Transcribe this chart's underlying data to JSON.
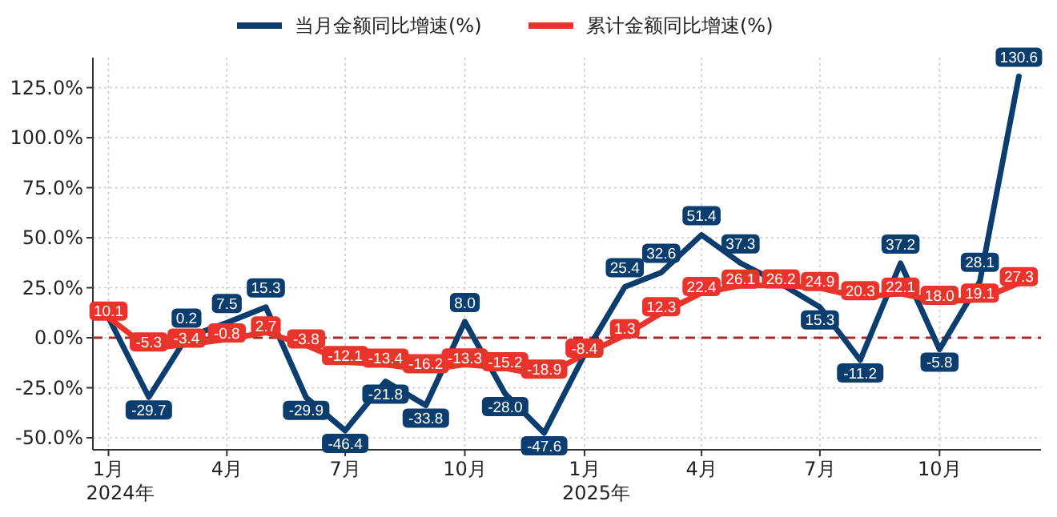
{
  "chart_data": {
    "type": "line",
    "x": [
      "2024-01",
      "2024-02",
      "2024-03",
      "2024-04",
      "2024-05",
      "2024-06",
      "2024-07",
      "2024-08",
      "2024-09",
      "2024-10",
      "2024-11",
      "2024-12",
      "2025-01",
      "2025-02",
      "2025-03",
      "2025-04",
      "2025-05",
      "2025-06",
      "2025-07",
      "2025-08",
      "2025-09",
      "2025-10",
      "2025-11",
      "2025-12"
    ],
    "series": [
      {
        "name": "当月金额同比增速(%)",
        "color": "#0b3d6e",
        "values": [
          10.1,
          -29.7,
          0.2,
          7.5,
          15.3,
          -29.9,
          -46.4,
          -21.8,
          -33.8,
          8.0,
          -28.0,
          -47.6,
          -8.4,
          25.4,
          32.6,
          51.4,
          37.3,
          27,
          15.3,
          -11.2,
          37.2,
          -5.8,
          28.1,
          130.6
        ],
        "value_labels": [
          null,
          "-29.7",
          "0.2",
          "7.5",
          "15.3",
          "-29.9",
          "-46.4",
          "-21.8",
          "-33.8",
          "8.0",
          "-28.0",
          "-47.6",
          null,
          "25.4",
          "32.6",
          "51.4",
          "37.3",
          null,
          "15.3",
          "-11.2",
          "37.2",
          "-5.8",
          "28.1",
          "130.6"
        ]
      },
      {
        "name": "累计金额同比增速(%)",
        "color": "#e8342a",
        "values": [
          10.1,
          -5.3,
          -3.4,
          -0.8,
          2.7,
          -3.8,
          -12.1,
          -13.4,
          -16.2,
          -13.3,
          -15.2,
          -18.9,
          -8.4,
          1.3,
          12.3,
          22.4,
          26.1,
          26.2,
          24.9,
          20.3,
          22.1,
          18.0,
          19.1,
          27.3
        ],
        "value_labels": [
          "10.1",
          "-5.3",
          "-3.4",
          "-0.8",
          "2.7",
          "-3.8",
          "-12.1",
          "-13.4",
          "-16.2",
          "-13.3",
          "-15.2",
          "-18.9",
          "-8.4",
          "1.3",
          "12.3",
          "22.4",
          "26.1",
          "26.2",
          "24.9",
          "20.3",
          "22.1",
          "18.0",
          "19.1",
          "27.3"
        ]
      }
    ],
    "xlim": [
      "2023-12-20",
      "2025-12-18"
    ],
    "xticks": [
      {
        "value": "2024-01",
        "label": "1月\n2024年"
      },
      {
        "value": "2024-04",
        "label": "4月"
      },
      {
        "value": "2024-07",
        "label": "7月"
      },
      {
        "value": "2024-10",
        "label": "10月"
      },
      {
        "value": "2025-01",
        "label": "1月\n2025年"
      },
      {
        "value": "2025-04",
        "label": "4月"
      },
      {
        "value": "2025-07",
        "label": "7月"
      },
      {
        "value": "2025-10",
        "label": "10月"
      }
    ],
    "ylim": [
      -56,
      140
    ],
    "yticks": [
      {
        "value": -50,
        "label": "-50.0%"
      },
      {
        "value": -25,
        "label": "-25.0%"
      },
      {
        "value": 0,
        "label": "0.0%"
      },
      {
        "value": 25,
        "label": "25.0%"
      },
      {
        "value": 50,
        "label": "50.0%"
      },
      {
        "value": 75,
        "label": "75.0%"
      },
      {
        "value": 100,
        "label": "100.0%"
      },
      {
        "value": 125,
        "label": "125.0%"
      }
    ],
    "ref_lines": [
      {
        "axis": "y",
        "value": 0,
        "color": "#a52a2a",
        "line_style": "dashed"
      }
    ],
    "grid": true,
    "legend": "top",
    "line_style": "solid",
    "marker": "none"
  }
}
